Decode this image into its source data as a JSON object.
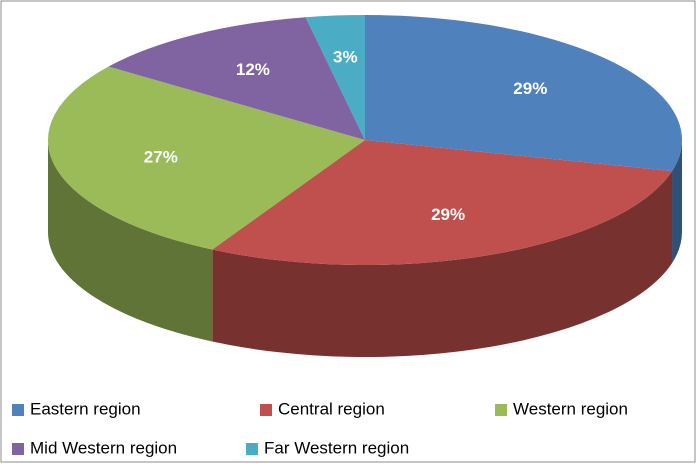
{
  "chart_data": {
    "type": "pie",
    "categories": [
      "Eastern region",
      "Central region",
      "Western region",
      "Mid Western region",
      "Far Western region"
    ],
    "values": [
      29,
      29,
      27,
      12,
      3
    ],
    "value_labels": [
      "29%",
      "29%",
      "27%",
      "12%",
      "3%"
    ],
    "colors": [
      "#4f81bd",
      "#c0504d",
      "#9bbb59",
      "#8064a2",
      "#4bacc6"
    ],
    "legend": "bottom"
  }
}
